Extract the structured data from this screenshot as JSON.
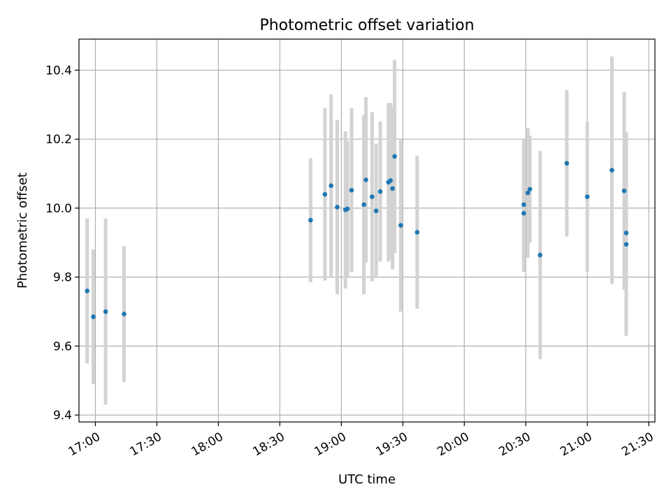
{
  "chart_data": {
    "type": "scatter",
    "title": "Photometric offset variation",
    "xlabel": "UTC time",
    "ylabel": "Photometric offset",
    "x_unit": "minutes",
    "xlim": [
      "16:52",
      "21:33"
    ],
    "ylim": [
      9.38,
      10.49
    ],
    "x_ticks": [
      "17:00",
      "17:30",
      "18:00",
      "18:30",
      "19:00",
      "19:30",
      "20:00",
      "20:30",
      "21:00",
      "21:30"
    ],
    "y_ticks": [
      9.4,
      9.6,
      9.8,
      10.0,
      10.2,
      10.4
    ],
    "y_tick_labels": [
      "9.4",
      "9.6",
      "9.8",
      "10.0",
      "10.2",
      "10.4"
    ],
    "grid": true,
    "colors": {
      "point": "#1f77b4",
      "errorbar": "#d3d3d3",
      "grid": "#b0b0b0"
    },
    "points": [
      {
        "x": "16:56",
        "y": 9.76,
        "yerr": 0.21
      },
      {
        "x": "16:59",
        "y": 9.685,
        "yerr": 0.195
      },
      {
        "x": "17:05",
        "y": 9.7,
        "yerr": 0.27
      },
      {
        "x": "17:14",
        "y": 9.693,
        "yerr": 0.197
      },
      {
        "x": "18:45",
        "y": 9.965,
        "yerr": 0.18
      },
      {
        "x": "18:52",
        "y": 10.04,
        "yerr": 0.25
      },
      {
        "x": "18:55",
        "y": 10.065,
        "yerr": 0.265
      },
      {
        "x": "18:58",
        "y": 10.003,
        "yerr": 0.253
      },
      {
        "x": "19:02",
        "y": 9.995,
        "yerr": 0.228
      },
      {
        "x": "19:03",
        "y": 9.998,
        "yerr": 0.197
      },
      {
        "x": "19:05",
        "y": 10.052,
        "yerr": 0.238
      },
      {
        "x": "19:11",
        "y": 10.01,
        "yerr": 0.26
      },
      {
        "x": "19:12",
        "y": 10.082,
        "yerr": 0.24
      },
      {
        "x": "19:15",
        "y": 10.033,
        "yerr": 0.245
      },
      {
        "x": "19:17",
        "y": 9.992,
        "yerr": 0.195
      },
      {
        "x": "19:19",
        "y": 10.048,
        "yerr": 0.203
      },
      {
        "x": "19:23",
        "y": 10.075,
        "yerr": 0.23
      },
      {
        "x": "19:24",
        "y": 10.08,
        "yerr": 0.225
      },
      {
        "x": "19:25",
        "y": 10.057,
        "yerr": 0.235
      },
      {
        "x": "19:26",
        "y": 10.15,
        "yerr": 0.28
      },
      {
        "x": "19:29",
        "y": 9.95,
        "yerr": 0.25
      },
      {
        "x": "19:37",
        "y": 9.93,
        "yerr": 0.222
      },
      {
        "x": "20:29",
        "y": 9.985,
        "yerr": 0.17
      },
      {
        "x": "20:29",
        "y": 10.01,
        "yerr": 0.19
      },
      {
        "x": "20:31",
        "y": 10.044,
        "yerr": 0.188
      },
      {
        "x": "20:32",
        "y": 10.055,
        "yerr": 0.155
      },
      {
        "x": "20:37",
        "y": 9.864,
        "yerr": 0.302
      },
      {
        "x": "20:50",
        "y": 10.13,
        "yerr": 0.212
      },
      {
        "x": "21:00",
        "y": 10.033,
        "yerr": 0.217
      },
      {
        "x": "21:12",
        "y": 10.11,
        "yerr": 0.33
      },
      {
        "x": "21:18",
        "y": 10.05,
        "yerr": 0.287
      },
      {
        "x": "21:19",
        "y": 9.895,
        "yerr": 0.265
      },
      {
        "x": "21:19",
        "y": 9.928,
        "yerr": 0.293
      }
    ]
  }
}
